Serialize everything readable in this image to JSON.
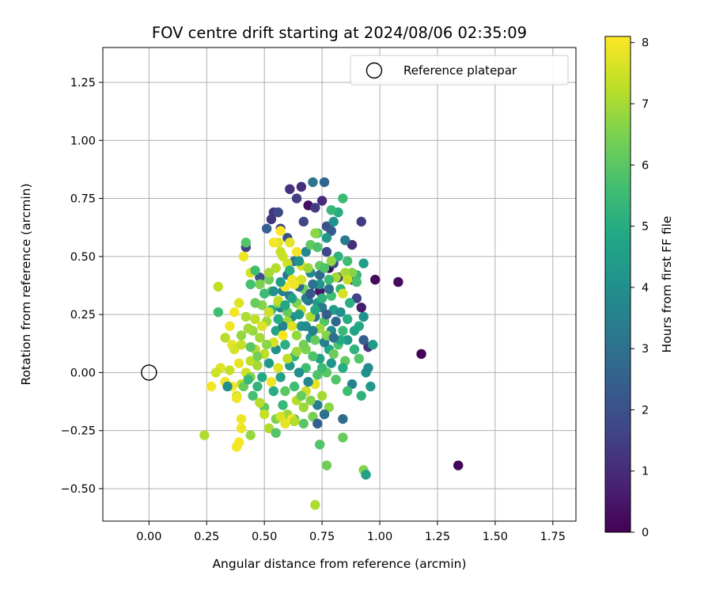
{
  "chart_data": {
    "type": "scatter",
    "title": "FOV centre drift starting at 2024/08/06 02:35:09",
    "xlabel": "Angular distance from reference (arcmin)",
    "ylabel": "Rotation from reference (arcmin)",
    "xlim": [
      -0.2,
      1.85
    ],
    "ylim": [
      -0.64,
      1.4
    ],
    "xticks": [
      "0.00",
      "0.25",
      "0.50",
      "0.75",
      "1.00",
      "1.25",
      "1.50",
      "1.75"
    ],
    "yticks": [
      "−0.50",
      "−0.25",
      "0.00",
      "0.25",
      "0.50",
      "0.75",
      "1.00",
      "1.25"
    ],
    "grid": true,
    "legend": {
      "placement": "top-right",
      "entries": [
        "Reference platepar"
      ]
    },
    "reference_point": {
      "x": 0.0,
      "y": 0.0
    },
    "colorbar": {
      "label": "Hours from first FF file",
      "ticks": [
        "0",
        "1",
        "2",
        "3",
        "4",
        "5",
        "6",
        "7",
        "8"
      ],
      "range": [
        0,
        8.1
      ],
      "colormap": "viridis"
    },
    "points": [
      [
        1.34,
        -0.4,
        0.1
      ],
      [
        1.18,
        0.08,
        0.1
      ],
      [
        1.08,
        0.39,
        0.2
      ],
      [
        0.98,
        0.4,
        0.2
      ],
      [
        0.69,
        0.72,
        0.3
      ],
      [
        0.92,
        0.28,
        0.6
      ],
      [
        0.78,
        0.45,
        0.3
      ],
      [
        0.74,
        0.35,
        0.5
      ],
      [
        0.66,
        0.8,
        1.1
      ],
      [
        0.61,
        0.79,
        1.2
      ],
      [
        0.54,
        0.69,
        1.3
      ],
      [
        0.57,
        0.62,
        1.6
      ],
      [
        0.92,
        0.65,
        1.4
      ],
      [
        0.64,
        0.75,
        1.5
      ],
      [
        0.72,
        0.71,
        1.4
      ],
      [
        0.67,
        0.65,
        1.7
      ],
      [
        0.75,
        0.74,
        1.0
      ],
      [
        0.56,
        0.69,
        1.8
      ],
      [
        0.6,
        0.58,
        2.0
      ],
      [
        0.53,
        0.66,
        1.2
      ],
      [
        0.88,
        0.55,
        1.1
      ],
      [
        0.88,
        0.4,
        1.0
      ],
      [
        0.95,
        0.11,
        1.2
      ],
      [
        0.93,
        0.14,
        2.4
      ],
      [
        0.9,
        0.32,
        1.6
      ],
      [
        0.82,
        0.41,
        1.3
      ],
      [
        0.77,
        0.52,
        1.8
      ],
      [
        0.8,
        0.47,
        1.9
      ],
      [
        0.71,
        0.82,
        3.2
      ],
      [
        0.76,
        0.82,
        2.6
      ],
      [
        0.77,
        0.63,
        2.0
      ],
      [
        0.79,
        0.61,
        2.3
      ],
      [
        0.42,
        0.54,
        1.6
      ],
      [
        0.48,
        0.41,
        2.1
      ],
      [
        0.51,
        0.62,
        2.5
      ],
      [
        0.85,
        0.57,
        3.3
      ],
      [
        0.8,
        0.65,
        4.1
      ],
      [
        0.82,
        0.69,
        5.0
      ],
      [
        0.84,
        0.75,
        5.5
      ],
      [
        0.79,
        0.7,
        5.4
      ],
      [
        0.68,
        0.52,
        3.7
      ],
      [
        0.6,
        0.42,
        3.0
      ],
      [
        0.63,
        0.48,
        2.9
      ],
      [
        0.58,
        0.35,
        3.5
      ],
      [
        0.7,
        0.43,
        3.8
      ],
      [
        0.74,
        0.38,
        4.2
      ],
      [
        0.73,
        0.3,
        4.4
      ],
      [
        0.8,
        0.27,
        4.5
      ],
      [
        0.86,
        0.23,
        5.0
      ],
      [
        0.84,
        0.18,
        5.4
      ],
      [
        0.82,
        0.12,
        5.8
      ],
      [
        0.78,
        0.1,
        4.8
      ],
      [
        0.74,
        0.06,
        4.6
      ],
      [
        0.7,
        0.15,
        4.3
      ],
      [
        0.66,
        0.2,
        4.1
      ],
      [
        0.62,
        0.24,
        3.9
      ],
      [
        0.57,
        0.28,
        3.6
      ],
      [
        0.55,
        0.18,
        4.7
      ],
      [
        0.59,
        0.12,
        5.1
      ],
      [
        0.63,
        0.07,
        5.3
      ],
      [
        0.68,
        0.02,
        5.6
      ],
      [
        0.73,
        -0.01,
        5.8
      ],
      [
        0.77,
        0.0,
        6.0
      ],
      [
        0.81,
        -0.03,
        5.9
      ],
      [
        0.85,
        0.05,
        6.1
      ],
      [
        0.89,
        0.1,
        5.2
      ],
      [
        0.91,
        0.2,
        4.9
      ],
      [
        0.9,
        0.42,
        5.4
      ],
      [
        0.93,
        0.47,
        4.5
      ],
      [
        0.86,
        0.48,
        5.6
      ],
      [
        0.82,
        0.5,
        5.2
      ],
      [
        0.77,
        0.58,
        4.3
      ],
      [
        0.73,
        0.6,
        5.7
      ],
      [
        0.7,
        0.55,
        6.1
      ],
      [
        0.67,
        0.36,
        6.3
      ],
      [
        0.64,
        0.3,
        6.5
      ],
      [
        0.6,
        0.26,
        6.2
      ],
      [
        0.56,
        0.3,
        6.7
      ],
      [
        0.53,
        0.35,
        6.4
      ],
      [
        0.51,
        0.22,
        6.9
      ],
      [
        0.48,
        0.15,
        7.0
      ],
      [
        0.46,
        0.1,
        7.2
      ],
      [
        0.44,
        0.05,
        7.3
      ],
      [
        0.42,
        0.0,
        7.5
      ],
      [
        0.4,
        -0.05,
        7.4
      ],
      [
        0.38,
        -0.1,
        7.6
      ],
      [
        0.36,
        0.12,
        7.8
      ],
      [
        0.35,
        0.2,
        7.9
      ],
      [
        0.37,
        0.26,
        8.0
      ],
      [
        0.39,
        0.3,
        7.7
      ],
      [
        0.42,
        0.24,
        7.1
      ],
      [
        0.45,
        0.18,
        6.8
      ],
      [
        0.49,
        0.29,
        6.6
      ],
      [
        0.52,
        0.4,
        6.3
      ],
      [
        0.55,
        0.45,
        7.2
      ],
      [
        0.58,
        0.5,
        7.5
      ],
      [
        0.61,
        0.56,
        7.8
      ],
      [
        0.64,
        0.52,
        8.0
      ],
      [
        0.66,
        0.46,
        7.6
      ],
      [
        0.62,
        0.4,
        7.9
      ],
      [
        0.59,
        0.37,
        8.1
      ],
      [
        0.56,
        0.31,
        7.3
      ],
      [
        0.6,
        0.22,
        7.0
      ],
      [
        0.64,
        0.16,
        6.8
      ],
      [
        0.68,
        0.1,
        6.5
      ],
      [
        0.72,
        0.14,
        6.2
      ],
      [
        0.76,
        0.22,
        5.9
      ],
      [
        0.79,
        0.33,
        5.6
      ],
      [
        0.83,
        0.36,
        5.3
      ],
      [
        0.87,
        0.3,
        5.1
      ],
      [
        0.89,
        0.18,
        4.7
      ],
      [
        0.86,
        0.14,
        4.4
      ],
      [
        0.83,
        0.26,
        4.0
      ],
      [
        0.79,
        0.18,
        3.8
      ],
      [
        0.76,
        0.13,
        3.5
      ],
      [
        0.72,
        0.24,
        3.2
      ],
      [
        0.69,
        0.31,
        3.0
      ],
      [
        0.65,
        0.37,
        2.8
      ],
      [
        0.61,
        0.33,
        3.3
      ],
      [
        0.58,
        0.2,
        3.6
      ],
      [
        0.55,
        0.1,
        4.0
      ],
      [
        0.52,
        0.04,
        4.4
      ],
      [
        0.49,
        -0.02,
        4.9
      ],
      [
        0.47,
        -0.06,
        5.3
      ],
      [
        0.45,
        -0.1,
        5.7
      ],
      [
        0.5,
        -0.15,
        6.1
      ],
      [
        0.55,
        -0.2,
        6.5
      ],
      [
        0.6,
        -0.18,
        6.9
      ],
      [
        0.64,
        -0.12,
        7.2
      ],
      [
        0.68,
        -0.08,
        7.5
      ],
      [
        0.72,
        -0.05,
        7.8
      ],
      [
        0.75,
        -0.1,
        7.0
      ],
      [
        0.78,
        -0.15,
        6.7
      ],
      [
        0.71,
        -0.19,
        6.4
      ],
      [
        0.67,
        -0.22,
        6.0
      ],
      [
        0.63,
        -0.2,
        5.7
      ],
      [
        0.58,
        -0.14,
        5.4
      ],
      [
        0.54,
        -0.08,
        5.0
      ],
      [
        0.57,
        -0.02,
        4.6
      ],
      [
        0.61,
        0.03,
        4.3
      ],
      [
        0.65,
        0.0,
        4.0
      ],
      [
        0.69,
        -0.04,
        3.7
      ],
      [
        0.73,
        -0.14,
        3.4
      ],
      [
        0.76,
        -0.18,
        3.0
      ],
      [
        0.73,
        -0.22,
        2.5
      ],
      [
        0.84,
        -0.2,
        2.8
      ],
      [
        0.88,
        -0.05,
        3.6
      ],
      [
        0.94,
        0.0,
        4.1
      ],
      [
        0.96,
        -0.06,
        4.3
      ],
      [
        0.92,
        -0.1,
        5.2
      ],
      [
        0.95,
        0.02,
        3.9
      ],
      [
        0.84,
        0.02,
        5.0
      ],
      [
        0.8,
        0.08,
        6.3
      ],
      [
        0.77,
        0.16,
        6.6
      ],
      [
        0.74,
        0.19,
        6.9
      ],
      [
        0.7,
        0.24,
        7.1
      ],
      [
        0.66,
        0.27,
        7.4
      ],
      [
        0.62,
        0.2,
        7.7
      ],
      [
        0.58,
        0.16,
        8.0
      ],
      [
        0.54,
        0.13,
        7.6
      ],
      [
        0.5,
        0.08,
        7.3
      ],
      [
        0.47,
        0.03,
        7.0
      ],
      [
        0.44,
        -0.02,
        6.6
      ],
      [
        0.41,
        -0.06,
        6.2
      ],
      [
        0.38,
        -0.11,
        7.9
      ],
      [
        0.36,
        -0.06,
        8.0
      ],
      [
        0.33,
        -0.04,
        7.9
      ],
      [
        0.31,
        0.02,
        7.7
      ],
      [
        0.29,
        0.0,
        7.5
      ],
      [
        0.27,
        -0.06,
        8.0
      ],
      [
        0.24,
        -0.27,
        7.1
      ],
      [
        0.3,
        0.37,
        7.3
      ],
      [
        0.3,
        0.26,
        5.6
      ],
      [
        0.34,
        -0.06,
        4.0
      ],
      [
        0.37,
        0.1,
        7.6
      ],
      [
        0.4,
        0.12,
        7.4
      ],
      [
        0.4,
        -0.2,
        7.9
      ],
      [
        0.39,
        -0.3,
        8.0
      ],
      [
        0.38,
        -0.32,
        8.0
      ],
      [
        0.4,
        -0.24,
        7.9
      ],
      [
        0.44,
        -0.27,
        6.8
      ],
      [
        0.48,
        -0.13,
        7.2
      ],
      [
        0.5,
        -0.18,
        7.4
      ],
      [
        0.52,
        -0.24,
        7.1
      ],
      [
        0.55,
        -0.26,
        5.9
      ],
      [
        0.57,
        -0.19,
        7.6
      ],
      [
        0.59,
        -0.22,
        7.8
      ],
      [
        0.62,
        -0.2,
        8.0
      ],
      [
        0.63,
        -0.21,
        7.2
      ],
      [
        0.67,
        -0.15,
        6.9
      ],
      [
        0.74,
        -0.31,
        5.9
      ],
      [
        0.77,
        -0.4,
        6.3
      ],
      [
        0.72,
        -0.57,
        7.1
      ],
      [
        0.93,
        -0.42,
        6.6
      ],
      [
        0.94,
        -0.44,
        4.6
      ],
      [
        0.84,
        -0.28,
        6.2
      ],
      [
        0.86,
        -0.08,
        5.6
      ],
      [
        0.91,
        0.06,
        5.9
      ],
      [
        0.97,
        0.12,
        4.4
      ],
      [
        0.93,
        0.24,
        4.1
      ],
      [
        0.9,
        0.39,
        5.7
      ],
      [
        0.88,
        0.43,
        6.6
      ],
      [
        0.85,
        0.43,
        7.0
      ],
      [
        0.86,
        0.4,
        7.4
      ],
      [
        0.84,
        0.34,
        7.6
      ],
      [
        0.81,
        0.41,
        7.0
      ],
      [
        0.79,
        0.48,
        6.8
      ],
      [
        0.74,
        0.46,
        6.1
      ],
      [
        0.73,
        0.54,
        5.8
      ],
      [
        0.72,
        0.6,
        6.7
      ],
      [
        0.69,
        0.45,
        6.9
      ],
      [
        0.66,
        0.4,
        7.6
      ],
      [
        0.63,
        0.38,
        7.9
      ],
      [
        0.6,
        0.47,
        7.5
      ],
      [
        0.57,
        0.52,
        7.4
      ],
      [
        0.56,
        0.56,
        7.8
      ],
      [
        0.54,
        0.56,
        8.0
      ],
      [
        0.57,
        0.61,
        8.1
      ],
      [
        0.52,
        0.43,
        7.0
      ],
      [
        0.48,
        0.38,
        6.5
      ],
      [
        0.46,
        0.3,
        6.2
      ],
      [
        0.44,
        0.43,
        7.6
      ],
      [
        0.41,
        0.5,
        7.9
      ],
      [
        0.42,
        0.56,
        5.9
      ],
      [
        0.44,
        0.38,
        5.7
      ],
      [
        0.46,
        0.44,
        5.6
      ],
      [
        0.5,
        0.34,
        5.5
      ],
      [
        0.53,
        0.27,
        5.2
      ],
      [
        0.56,
        0.23,
        5.0
      ],
      [
        0.59,
        0.29,
        4.8
      ],
      [
        0.62,
        0.32,
        4.6
      ],
      [
        0.65,
        0.25,
        4.3
      ],
      [
        0.68,
        0.2,
        3.9
      ],
      [
        0.71,
        0.18,
        3.5
      ],
      [
        0.75,
        0.28,
        3.3
      ],
      [
        0.78,
        0.36,
        3.0
      ],
      [
        0.81,
        0.22,
        2.7
      ],
      [
        0.83,
        0.14,
        4.9
      ],
      [
        0.79,
        0.04,
        4.2
      ],
      [
        0.75,
        0.02,
        5.5
      ],
      [
        0.71,
        0.07,
        5.8
      ],
      [
        0.67,
        0.12,
        6.4
      ],
      [
        0.64,
        0.09,
        6.9
      ],
      [
        0.6,
        0.06,
        7.3
      ],
      [
        0.56,
        0.02,
        7.7
      ],
      [
        0.53,
        -0.04,
        7.9
      ],
      [
        0.59,
        -0.08,
        6.0
      ],
      [
        0.63,
        -0.06,
        5.6
      ],
      [
        0.66,
        -0.1,
        6.2
      ],
      [
        0.7,
        -0.12,
        6.6
      ],
      [
        0.68,
        0.32,
        3.4
      ],
      [
        0.71,
        0.38,
        3.1
      ],
      [
        0.74,
        0.42,
        2.8
      ],
      [
        0.7,
        0.34,
        2.2
      ],
      [
        0.77,
        0.25,
        2.4
      ],
      [
        0.8,
        0.15,
        2.9
      ],
      [
        0.72,
        0.27,
        4.9
      ],
      [
        0.75,
        0.32,
        5.2
      ],
      [
        0.78,
        0.4,
        5.5
      ],
      [
        0.76,
        0.45,
        5.8
      ],
      [
        0.52,
        0.26,
        7.5
      ],
      [
        0.49,
        0.2,
        7.7
      ],
      [
        0.46,
        0.23,
        7.3
      ],
      [
        0.43,
        0.19,
        7.0
      ],
      [
        0.4,
        0.16,
        6.8
      ],
      [
        0.51,
        0.12,
        6.7
      ],
      [
        0.47,
        0.07,
        6.4
      ],
      [
        0.44,
        0.11,
        6.0
      ],
      [
        0.39,
        0.04,
        7.8
      ],
      [
        0.35,
        0.01,
        7.4
      ],
      [
        0.33,
        0.15,
        7.2
      ],
      [
        0.43,
        -0.03,
        5.4
      ],
      [
        0.54,
        0.35,
        4.0
      ],
      [
        0.57,
        0.39,
        4.5
      ],
      [
        0.61,
        0.44,
        5.0
      ],
      [
        0.65,
        0.48,
        4.2
      ]
    ]
  }
}
